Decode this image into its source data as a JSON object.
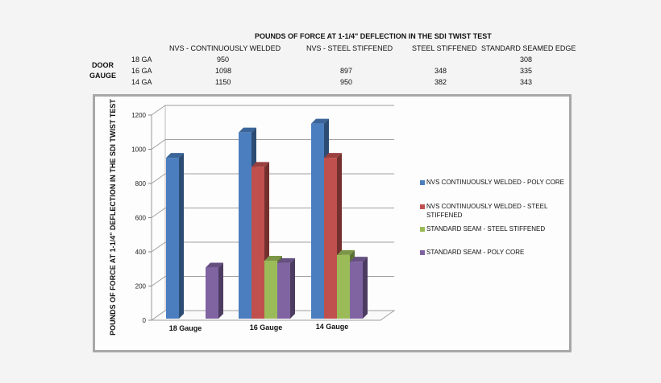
{
  "table": {
    "title": "POUNDS OF FORCE AT 1-1/4\" DEFLECTION IN THE SDI TWIST TEST",
    "row_header_line1": "DOOR",
    "row_header_line2": "GAUGE",
    "columns": [
      "NVS - CONTINUOUSLY WELDED",
      "NVS - STEEL STIFFENED",
      "STEEL STIFFENED",
      "STANDARD SEAMED EDGE"
    ],
    "rows": [
      {
        "label": "18 GA",
        "values": [
          "950",
          "",
          "",
          "308"
        ]
      },
      {
        "label": "16 GA",
        "values": [
          "1098",
          "897",
          "348",
          "335"
        ]
      },
      {
        "label": "14 GA",
        "values": [
          "1150",
          "950",
          "382",
          "343"
        ]
      }
    ]
  },
  "chart_data": {
    "type": "bar",
    "title": "",
    "xlabel": "",
    "ylabel": "POUNDS OF FORCE AT 1-1/4\" DEFLECTION IN THE SDI TWIST TEST",
    "categories": [
      "18 Gauge",
      "16 Gauge",
      "14 Gauge"
    ],
    "series": [
      {
        "name": "NVS CONTINUOUSLY WELDED - POLY CORE",
        "color": "#4a7ebf",
        "values": [
          950,
          1098,
          1150
        ]
      },
      {
        "name": "NVS CONTINUOUSLY WELDED - STEEL STIFFENED",
        "color": "#c0504d",
        "values": [
          null,
          897,
          950
        ]
      },
      {
        "name": "STANDARD SEAM - STEEL STIFFENED",
        "color": "#9bbb59",
        "values": [
          null,
          348,
          382
        ]
      },
      {
        "name": "STANDARD SEAM - POLY CORE",
        "color": "#8064a2",
        "values": [
          308,
          335,
          343
        ]
      }
    ],
    "yticks": [
      "0",
      "200",
      "400",
      "600",
      "800",
      "1000",
      "1200"
    ],
    "ylim": [
      0,
      1200
    ],
    "grid": true,
    "legend_position": "right",
    "style": "3d-clustered-column"
  },
  "legend": {
    "items": [
      {
        "line1": "NVS CONTINUOUSLY WELDED - POLY CORE",
        "line2": ""
      },
      {
        "line1": "NVS CONTINUOUSLY WELDED - STEEL",
        "line2": "STIFFENED"
      },
      {
        "line1": "STANDARD SEAM - STEEL STIFFENED",
        "line2": ""
      },
      {
        "line1": "STANDARD SEAM - POLY CORE",
        "line2": ""
      }
    ]
  }
}
